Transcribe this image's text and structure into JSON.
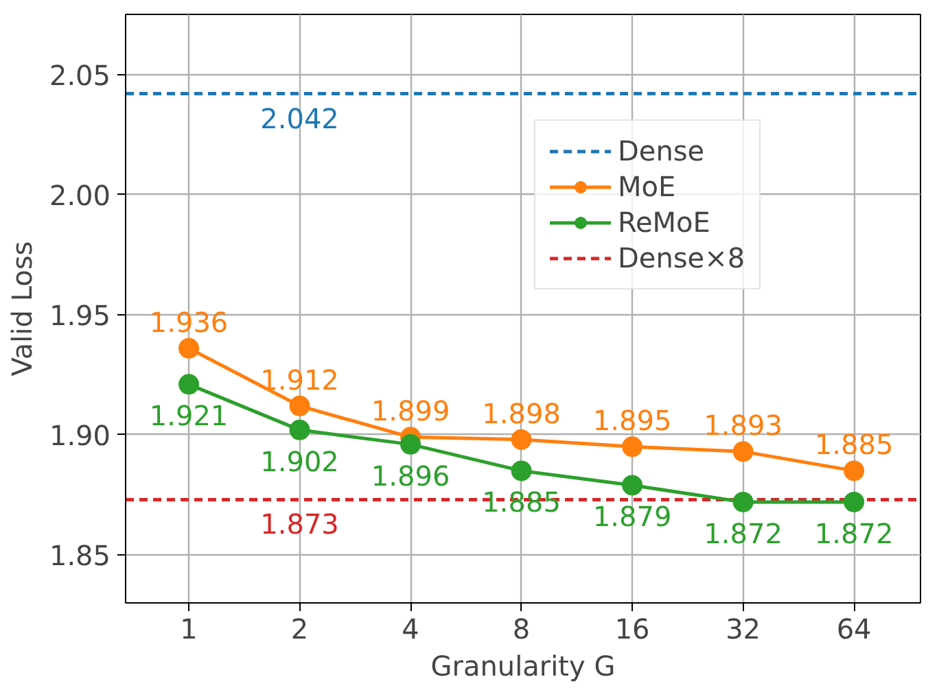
{
  "chart_data": {
    "type": "line",
    "xlabel": "Granularity G",
    "ylabel": "Valid Loss",
    "categories": [
      "1",
      "2",
      "4",
      "8",
      "16",
      "32",
      "64"
    ],
    "series": [
      {
        "name": "MoE",
        "color": "#ff7f0e",
        "values": [
          1.936,
          1.912,
          1.899,
          1.898,
          1.895,
          1.893,
          1.885
        ]
      },
      {
        "name": "ReMoE",
        "color": "#2ca02c",
        "values": [
          1.921,
          1.902,
          1.896,
          1.885,
          1.879,
          1.872,
          1.872
        ]
      }
    ],
    "ref_lines": [
      {
        "axis": "y",
        "value": 2.042,
        "label": "Dense",
        "color": "#1f77b4",
        "line_style": "dashed"
      },
      {
        "axis": "y",
        "value": 1.873,
        "label": "Dense×8",
        "color": "#d62728",
        "line_style": "dashed"
      }
    ],
    "annotations": [
      {
        "text": "2.042",
        "x": "2",
        "y": 2.042
      },
      {
        "text": "1.873",
        "x": "2",
        "y": 1.873
      }
    ],
    "ylim": [
      1.83,
      2.075
    ],
    "yticks": [
      {
        "value": 1.85,
        "label": "1.85"
      },
      {
        "value": 1.9,
        "label": "1.90"
      },
      {
        "value": 1.95,
        "label": "1.95"
      },
      {
        "value": 2.0,
        "label": "2.00"
      },
      {
        "value": 2.05,
        "label": "2.05"
      }
    ],
    "grid": true,
    "legend": "top right",
    "marker": "circle",
    "line_style": "solid",
    "data_labels": true
  }
}
